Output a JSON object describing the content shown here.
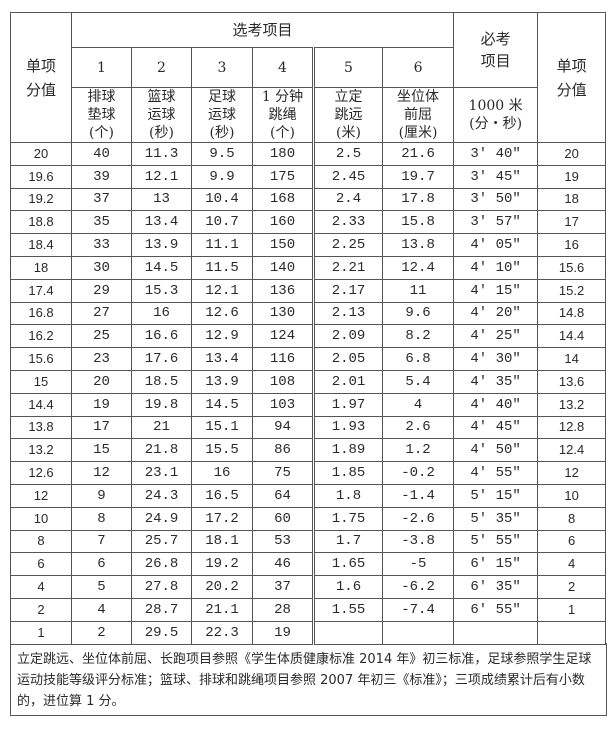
{
  "header": {
    "score_label": "单项分值",
    "elective_group": "选考项目",
    "required_group": "必考项目",
    "score_label_right": "单项分值",
    "item_numbers": [
      "1",
      "2",
      "3",
      "4",
      "5",
      "6"
    ],
    "item_names": [
      "排球垫球（个）",
      "篮球运球（秒）",
      "足球运球（秒）",
      "1分钟跳绳（个）",
      "立定跳远（米）",
      "坐位体前屈（厘米）"
    ],
    "item_name_lines": [
      [
        "排球",
        "垫球",
        "(个)"
      ],
      [
        "篮球",
        "运球",
        "(秒)"
      ],
      [
        "足球",
        "运球",
        "(秒)"
      ],
      [
        "1 分钟",
        "跳绳",
        "(个)"
      ],
      [
        "立定",
        "跳远",
        "(米)"
      ],
      [
        "坐位体",
        "前屈",
        "(厘米)"
      ]
    ],
    "required_item_lines": [
      "1000 米",
      "(分・秒)"
    ]
  },
  "rows": [
    [
      "20",
      "40",
      "11.3",
      "9.5",
      "180",
      "2.5",
      "21.6",
      "3′ 40″",
      "20"
    ],
    [
      "19.6",
      "39",
      "12.1",
      "9.9",
      "175",
      "2.45",
      "19.7",
      "3′ 45″",
      "19"
    ],
    [
      "19.2",
      "37",
      "13",
      "10.4",
      "168",
      "2.4",
      "17.8",
      "3′ 50″",
      "18"
    ],
    [
      "18.8",
      "35",
      "13.4",
      "10.7",
      "160",
      "2.33",
      "15.8",
      "3′ 57″",
      "17"
    ],
    [
      "18.4",
      "33",
      "13.9",
      "11.1",
      "150",
      "2.25",
      "13.8",
      "4′ 05″",
      "16"
    ],
    [
      "18",
      "30",
      "14.5",
      "11.5",
      "140",
      "2.21",
      "12.4",
      "4′ 10″",
      "15.6"
    ],
    [
      "17.4",
      "29",
      "15.3",
      "12.1",
      "136",
      "2.17",
      "11",
      "4′ 15″",
      "15.2"
    ],
    [
      "16.8",
      "27",
      "16",
      "12.6",
      "130",
      "2.13",
      "9.6",
      "4′ 20″",
      "14.8"
    ],
    [
      "16.2",
      "25",
      "16.6",
      "12.9",
      "124",
      "2.09",
      "8.2",
      "4′ 25″",
      "14.4"
    ],
    [
      "15.6",
      "23",
      "17.6",
      "13.4",
      "116",
      "2.05",
      "6.8",
      "4′ 30″",
      "14"
    ],
    [
      "15",
      "20",
      "18.5",
      "13.9",
      "108",
      "2.01",
      "5.4",
      "4′ 35″",
      "13.6"
    ],
    [
      "14.4",
      "19",
      "19.8",
      "14.5",
      "103",
      "1.97",
      "4",
      "4′ 40″",
      "13.2"
    ],
    [
      "13.8",
      "17",
      "21",
      "15.1",
      "94",
      "1.93",
      "2.6",
      "4′ 45″",
      "12.8"
    ],
    [
      "13.2",
      "15",
      "21.8",
      "15.5",
      "86",
      "1.89",
      "1.2",
      "4′ 50″",
      "12.4"
    ],
    [
      "12.6",
      "12",
      "23.1",
      "16",
      "75",
      "1.85",
      "-0.2",
      "4′ 55″",
      "12"
    ],
    [
      "12",
      "9",
      "24.3",
      "16.5",
      "64",
      "1.8",
      "-1.4",
      "5′ 15″",
      "10"
    ],
    [
      "10",
      "8",
      "24.9",
      "17.2",
      "60",
      "1.75",
      "-2.6",
      "5′ 35″",
      "8"
    ],
    [
      "8",
      "7",
      "25.7",
      "18.1",
      "53",
      "1.7",
      "-3.8",
      "5′ 55″",
      "6"
    ],
    [
      "6",
      "6",
      "26.8",
      "19.2",
      "46",
      "1.65",
      "-5",
      "6′ 15″",
      "4"
    ],
    [
      "4",
      "5",
      "27.8",
      "20.2",
      "37",
      "1.6",
      "-6.2",
      "6′ 35″",
      "2"
    ],
    [
      "2",
      "4",
      "28.7",
      "21.1",
      "28",
      "1.55",
      "-7.4",
      "6′ 55″",
      "1"
    ],
    [
      "1",
      "2",
      "29.5",
      "22.3",
      "19",
      "",
      "",
      "",
      ""
    ]
  ],
  "note": "立定跳远、坐位体前屈、长跑项目参照《学生体质健康标准 2014 年》初三标准，足球参照学生足球运动技能等级评分标准；篮球、排球和跳绳项目参照 2007 年初三《标准》；三项成绩累计后有小数的，进位算 1 分。"
}
